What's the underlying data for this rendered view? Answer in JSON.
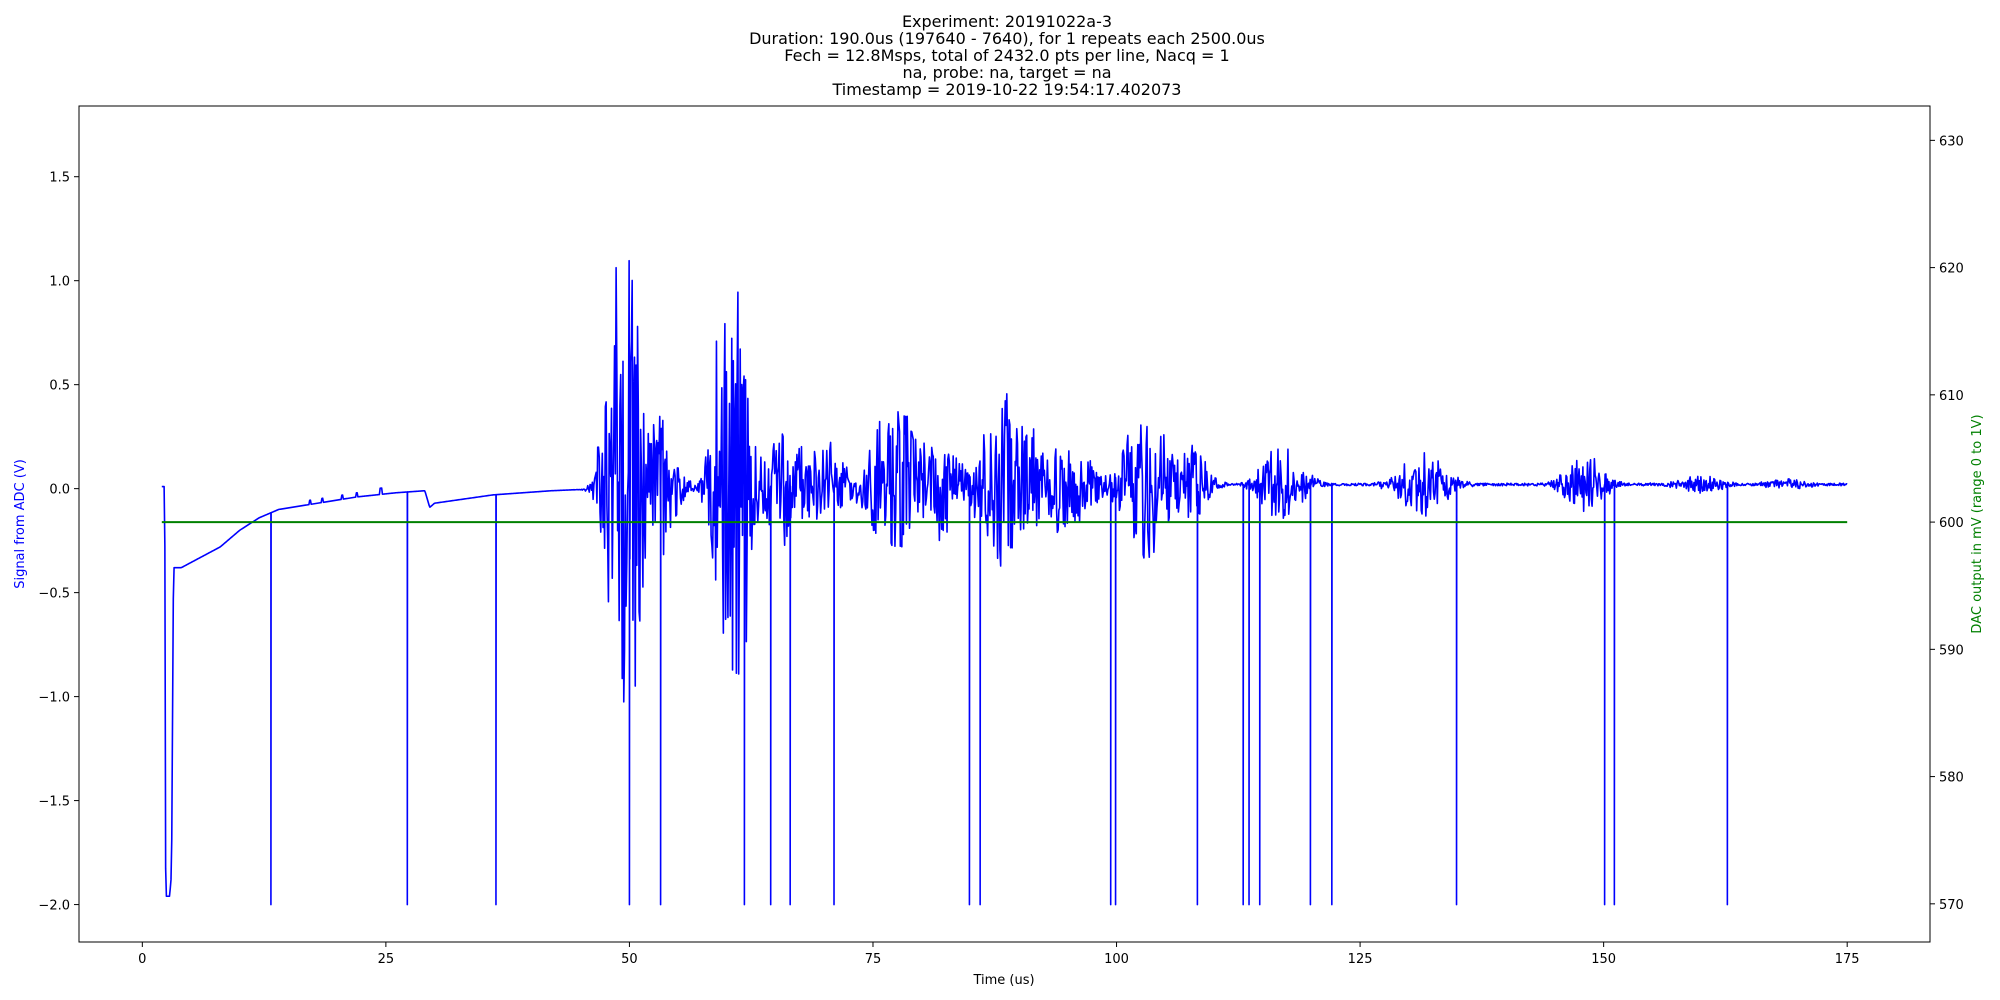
{
  "chart_data": {
    "type": "line",
    "title_lines": [
      "Experiment: 20191022a-3",
      "Duration: 190.0us (197640 - 7640), for 1 repeats each 2500.0us",
      "Fech = 12.8Msps, total of 2432.0 pts per line, Nacq = 1",
      "na, probe: na, target = na",
      "Timestamp = 2019-10-22 19:54:17.402073"
    ],
    "xlabel": "Time (us)",
    "ylabel_left": "Signal from ADC (V)",
    "ylabel_right": "DAC output in mV (range 0 to 1V)",
    "xlim": [
      -6.5,
      183.5
    ],
    "ylim_left": [
      -2.18,
      1.84
    ],
    "ylim_right": [
      567,
      632.7
    ],
    "x_ticks": [
      0,
      25,
      50,
      75,
      100,
      125,
      150,
      175
    ],
    "y_ticks_left": [
      -2.0,
      -1.5,
      -1.0,
      -0.5,
      0.0,
      0.5,
      1.0,
      1.5
    ],
    "y_ticks_left_labels": [
      "−2.0",
      "−1.5",
      "−1.0",
      "−0.5",
      "0.0",
      "0.5",
      "1.0",
      "1.5"
    ],
    "y_ticks_right": [
      570,
      580,
      590,
      600,
      610,
      620,
      630
    ],
    "grid": false,
    "colors": {
      "signal": "#0000ff",
      "dac": "#008000",
      "left_label": "#0000ff",
      "right_label": "#008000"
    },
    "series": [
      {
        "axis": "left",
        "color": "#0000ff",
        "x_start": 2.0,
        "x_end": 175.0,
        "samples": 2200,
        "baseline": [
          [
            2.0,
            0.01
          ],
          [
            2.3,
            0.01
          ],
          [
            2.4,
            -1.96
          ],
          [
            2.8,
            -1.96
          ],
          [
            3.0,
            -1.85
          ],
          [
            3.2,
            -0.38
          ],
          [
            4.0,
            -0.38
          ],
          [
            6.0,
            -0.33
          ],
          [
            8.0,
            -0.28
          ],
          [
            10.0,
            -0.2
          ],
          [
            12.0,
            -0.14
          ],
          [
            14.0,
            -0.1
          ],
          [
            18.0,
            -0.07
          ],
          [
            22.0,
            -0.04
          ],
          [
            26.0,
            -0.02
          ],
          [
            29.0,
            -0.01
          ],
          [
            29.5,
            -0.09
          ],
          [
            30.0,
            -0.07
          ],
          [
            36.0,
            -0.03
          ],
          [
            42.0,
            -0.01
          ],
          [
            47.0,
            0.0
          ],
          [
            60.0,
            0.01
          ],
          [
            100.0,
            0.02
          ],
          [
            175.0,
            0.02
          ]
        ],
        "bursts": [
          {
            "center": 49.5,
            "width": 1.8,
            "amp": 1.65
          },
          {
            "center": 52.5,
            "width": 2.5,
            "amp": 0.45
          },
          {
            "center": 60.5,
            "width": 1.8,
            "amp": 1.65
          },
          {
            "center": 65.5,
            "width": 3.5,
            "amp": 0.32
          },
          {
            "center": 70.0,
            "width": 2.5,
            "amp": 0.25
          },
          {
            "center": 77.5,
            "width": 3.5,
            "amp": 0.45
          },
          {
            "center": 81.5,
            "width": 3.0,
            "amp": 0.3
          },
          {
            "center": 89.0,
            "width": 3.5,
            "amp": 0.5
          },
          {
            "center": 95.0,
            "width": 3.0,
            "amp": 0.28
          },
          {
            "center": 103.0,
            "width": 3.0,
            "amp": 0.4
          },
          {
            "center": 107.0,
            "width": 2.5,
            "amp": 0.25
          },
          {
            "center": 117.0,
            "width": 2.5,
            "amp": 0.25
          },
          {
            "center": 131.5,
            "width": 3.0,
            "amp": 0.18
          },
          {
            "center": 148.0,
            "width": 2.5,
            "amp": 0.16
          },
          {
            "center": 160.0,
            "width": 3.0,
            "amp": 0.05
          },
          {
            "center": 169.0,
            "width": 3.0,
            "amp": 0.03
          }
        ],
        "negative_spikes": [
          13.2,
          27.2,
          36.3,
          50.0,
          53.2,
          61.8,
          64.5,
          66.5,
          71.0,
          84.9,
          86.0,
          99.4,
          99.9,
          108.3,
          113.0,
          113.6,
          114.7,
          119.9,
          122.1,
          134.9,
          150.1,
          151.1,
          162.7
        ],
        "small_peaks": [
          [
            17.2,
            0.02
          ],
          [
            18.5,
            0.02
          ],
          [
            20.5,
            0.02
          ],
          [
            22.0,
            0.02
          ],
          [
            24.5,
            0.03
          ],
          [
            46.8,
            0.2
          ]
        ]
      },
      {
        "axis": "right",
        "color": "#008000",
        "x": [
          2.0,
          175.0
        ],
        "y": [
          600.0,
          600.0
        ]
      }
    ]
  }
}
